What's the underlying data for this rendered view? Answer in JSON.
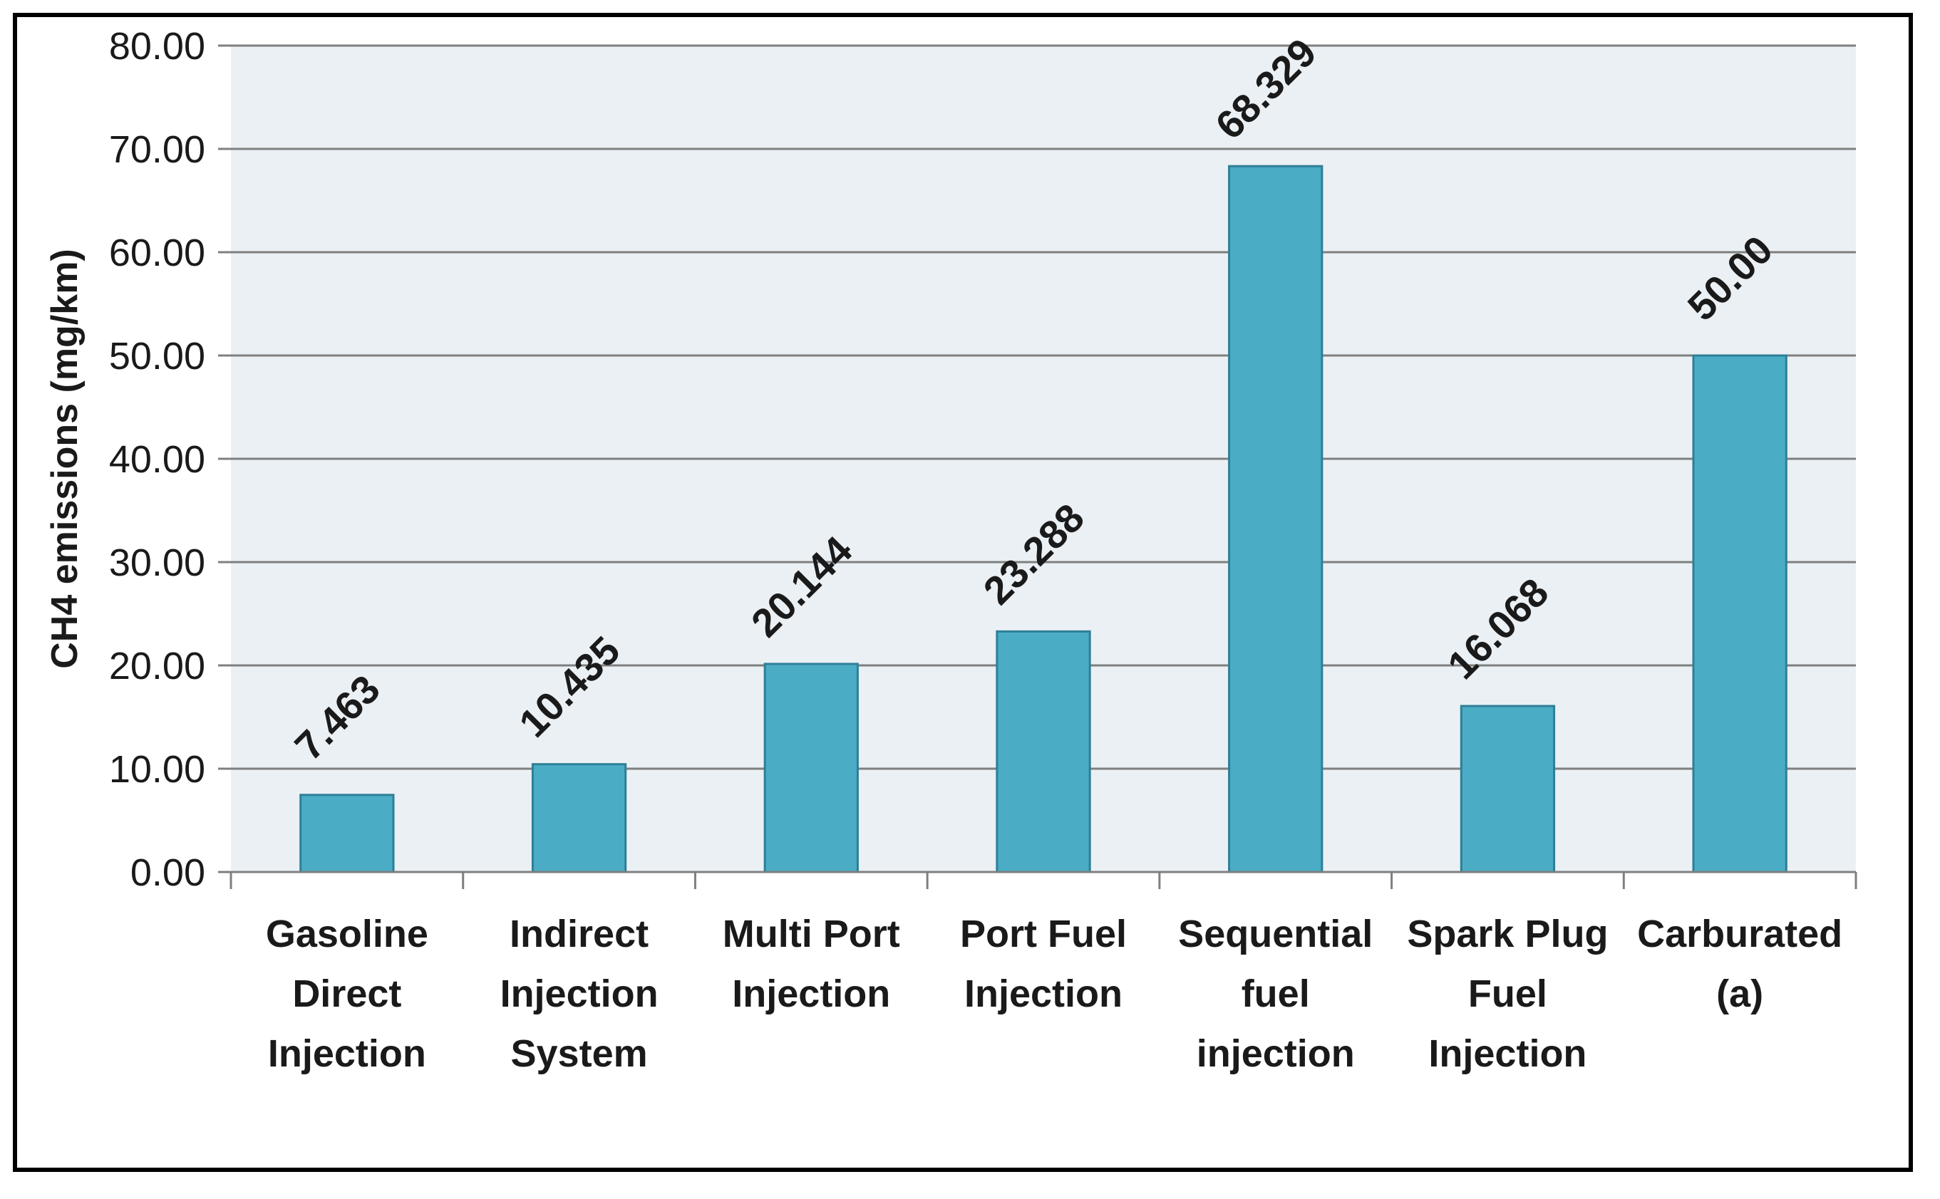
{
  "chart_data": {
    "type": "bar",
    "title": "",
    "xlabel": "",
    "ylabel": "CH4 emissions  (mg/km)",
    "ylim": [
      0,
      80
    ],
    "yticks": [
      "0.00",
      "10.00",
      "20.00",
      "30.00",
      "40.00",
      "50.00",
      "60.00",
      "70.00",
      "80.00"
    ],
    "grid": true,
    "categories": [
      [
        "Gasoline",
        "Direct",
        "Injection"
      ],
      [
        "Indirect",
        "Injection",
        "System"
      ],
      [
        "Multi Port",
        "Injection"
      ],
      [
        "Port Fuel",
        "Injection"
      ],
      [
        "Sequential",
        "fuel",
        "injection"
      ],
      [
        "Spark Plug",
        "Fuel",
        "Injection"
      ],
      [
        "Carburated",
        "(a)"
      ]
    ],
    "values": [
      7.463,
      10.435,
      20.144,
      23.288,
      68.329,
      16.068,
      50.0
    ],
    "data_labels": [
      "7.463",
      "10.435",
      "20.144",
      "23.288",
      "68.329",
      "16.068",
      "50.00"
    ]
  },
  "colors": {
    "bar": "#4bacc6",
    "bar_edge": "#2e7f96",
    "plot_bg": "#eaf0f4",
    "grid": "#7f7f7f",
    "axis": "#7f7f7f"
  }
}
